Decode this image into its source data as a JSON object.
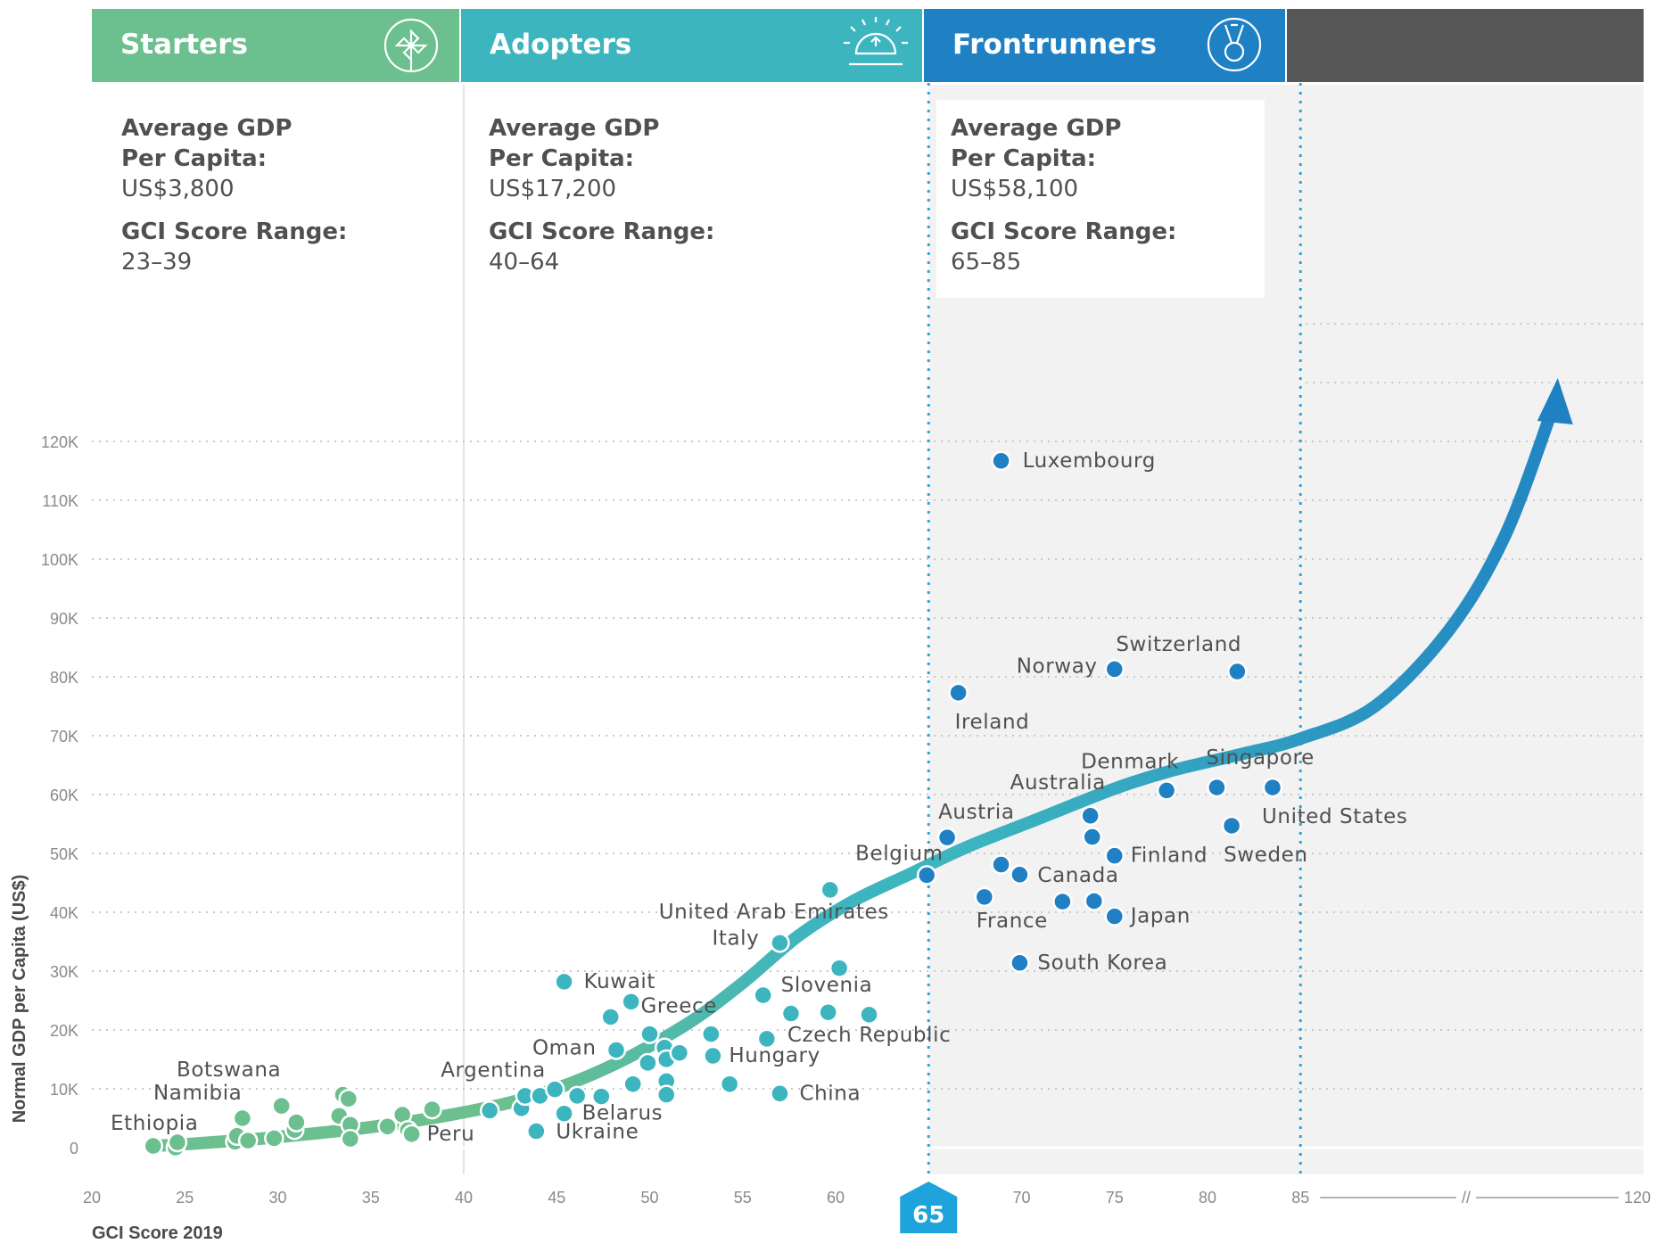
{
  "chart_data": {
    "type": "scatter",
    "xlabel": "GCI Score 2019",
    "ylabel": "Normal GDP per Capita (US$)",
    "x_ticks": [
      "20",
      "25",
      "30",
      "35",
      "40",
      "45",
      "50",
      "55",
      "60",
      "65",
      "70",
      "75",
      "80",
      "85",
      "120"
    ],
    "y_ticks": [
      "0",
      "10K",
      "20K",
      "30K",
      "40K",
      "50K",
      "60K",
      "70K",
      "80K",
      "90K",
      "100K",
      "110K",
      "120K"
    ],
    "xlim": [
      20,
      85
    ],
    "ylim": [
      0,
      120000
    ],
    "axis_break": "//",
    "x_highlight_tick": "65",
    "grid": "horizontal dotted",
    "bands": [
      {
        "name": "Starters",
        "x_range": [
          20,
          40
        ],
        "color": "#6cbf8e",
        "avg_gdp_label": "Average GDP",
        "avg_gdp_label2": "Per Capita:",
        "avg_gdp_value": "US$3,800",
        "range_label": "GCI Score Range:",
        "range_value": "23–39"
      },
      {
        "name": "Adopters",
        "x_range": [
          40,
          65
        ],
        "color": "#3db5bf",
        "avg_gdp_label": "Average GDP",
        "avg_gdp_label2": "Per Capita:",
        "avg_gdp_value": "US$17,200",
        "range_label": "GCI Score Range:",
        "range_value": "40–64"
      },
      {
        "name": "Frontrunners",
        "x_range": [
          65,
          85
        ],
        "color": "#1f80c4",
        "avg_gdp_label": "Average GDP",
        "avg_gdp_label2": "Per Capita:",
        "avg_gdp_value": "US$58,100",
        "range_label": "GCI Score Range:",
        "range_value": "65–85"
      }
    ],
    "extra_band_color": "#585758",
    "trend_colors": {
      "start": "#6cbf8e",
      "mid": "#3db5bf",
      "end": "#1f80c4"
    },
    "points": [
      {
        "x": 23.3,
        "y": 300,
        "group": "starter",
        "label": "Ethiopia"
      },
      {
        "x": 24.5,
        "y": 0,
        "group": "starter"
      },
      {
        "x": 24.6,
        "y": 900,
        "group": "starter"
      },
      {
        "x": 27.7,
        "y": 1000,
        "group": "starter"
      },
      {
        "x": 27.8,
        "y": 2000,
        "group": "starter"
      },
      {
        "x": 28.1,
        "y": 5000,
        "group": "starter",
        "label": "Namibia"
      },
      {
        "x": 28.4,
        "y": 1200,
        "group": "starter"
      },
      {
        "x": 29.8,
        "y": 1600,
        "group": "starter"
      },
      {
        "x": 30.2,
        "y": 7100,
        "group": "starter",
        "label": "Botswana"
      },
      {
        "x": 30.9,
        "y": 3000,
        "group": "starter"
      },
      {
        "x": 31.0,
        "y": 4300,
        "group": "starter"
      },
      {
        "x": 33.3,
        "y": 5400,
        "group": "starter"
      },
      {
        "x": 33.5,
        "y": 9000,
        "group": "starter"
      },
      {
        "x": 33.8,
        "y": 8300,
        "group": "starter"
      },
      {
        "x": 33.9,
        "y": 3900,
        "group": "starter"
      },
      {
        "x": 33.9,
        "y": 1500,
        "group": "starter"
      },
      {
        "x": 35.9,
        "y": 3600,
        "group": "starter"
      },
      {
        "x": 36.7,
        "y": 5600,
        "group": "starter"
      },
      {
        "x": 37.0,
        "y": 3000,
        "group": "starter"
      },
      {
        "x": 37.2,
        "y": 2300,
        "group": "starter",
        "label": "Peru"
      },
      {
        "x": 38.3,
        "y": 6500,
        "group": "starter"
      },
      {
        "x": 41.4,
        "y": 6300,
        "group": "adopter",
        "label": "Argentina"
      },
      {
        "x": 43.1,
        "y": 6700,
        "group": "adopter"
      },
      {
        "x": 43.3,
        "y": 8800,
        "group": "adopter"
      },
      {
        "x": 43.9,
        "y": 2800,
        "group": "adopter",
        "label": "Ukraine"
      },
      {
        "x": 44.1,
        "y": 8800,
        "group": "adopter"
      },
      {
        "x": 44.9,
        "y": 9900,
        "group": "adopter"
      },
      {
        "x": 45.4,
        "y": 28200,
        "group": "adopter",
        "label": "Kuwait"
      },
      {
        "x": 45.4,
        "y": 5800,
        "group": "adopter",
        "label": "Belarus"
      },
      {
        "x": 46.1,
        "y": 8800,
        "group": "adopter"
      },
      {
        "x": 47.4,
        "y": 8700,
        "group": "adopter"
      },
      {
        "x": 47.9,
        "y": 22200,
        "group": "adopter"
      },
      {
        "x": 48.2,
        "y": 16600,
        "group": "adopter",
        "label": "Oman"
      },
      {
        "x": 49.0,
        "y": 24800,
        "group": "adopter"
      },
      {
        "x": 49.1,
        "y": 10800,
        "group": "adopter"
      },
      {
        "x": 49.9,
        "y": 14400,
        "group": "adopter"
      },
      {
        "x": 50.0,
        "y": 19300,
        "group": "adopter",
        "label": "Greece"
      },
      {
        "x": 50.8,
        "y": 17000,
        "group": "adopter"
      },
      {
        "x": 50.9,
        "y": 15000,
        "group": "adopter"
      },
      {
        "x": 50.9,
        "y": 11300,
        "group": "adopter"
      },
      {
        "x": 50.9,
        "y": 9000,
        "group": "adopter"
      },
      {
        "x": 51.6,
        "y": 16100,
        "group": "adopter"
      },
      {
        "x": 53.3,
        "y": 19300,
        "group": "adopter"
      },
      {
        "x": 53.4,
        "y": 15600,
        "group": "adopter",
        "label": "Hungary"
      },
      {
        "x": 54.3,
        "y": 10800,
        "group": "adopter"
      },
      {
        "x": 56.1,
        "y": 25900,
        "group": "adopter",
        "label": "Slovenia"
      },
      {
        "x": 56.3,
        "y": 18500,
        "group": "adopter",
        "label": "Czech Republic"
      },
      {
        "x": 57.0,
        "y": 9200,
        "group": "adopter",
        "label": "China"
      },
      {
        "x": 57.0,
        "y": 34800,
        "group": "adopter",
        "label": "Italy"
      },
      {
        "x": 57.6,
        "y": 22800,
        "group": "adopter"
      },
      {
        "x": 59.6,
        "y": 23000,
        "group": "adopter"
      },
      {
        "x": 59.7,
        "y": 43800,
        "group": "adopter",
        "label": "United Arab Emirates"
      },
      {
        "x": 60.2,
        "y": 30500,
        "group": "adopter"
      },
      {
        "x": 61.8,
        "y": 22600,
        "group": "adopter"
      },
      {
        "x": 64.9,
        "y": 46300,
        "group": "frontrunner",
        "label": "Belgium"
      },
      {
        "x": 66.0,
        "y": 52700,
        "group": "frontrunner",
        "label": "Austria"
      },
      {
        "x": 66.6,
        "y": 77300,
        "group": "frontrunner",
        "label": "Ireland"
      },
      {
        "x": 68.0,
        "y": 42600,
        "group": "frontrunner",
        "label": "France"
      },
      {
        "x": 68.9,
        "y": 116700,
        "group": "frontrunner",
        "label": "Luxembourg"
      },
      {
        "x": 68.9,
        "y": 48100,
        "group": "frontrunner"
      },
      {
        "x": 69.9,
        "y": 46400,
        "group": "frontrunner",
        "label": "Canada"
      },
      {
        "x": 69.9,
        "y": 31400,
        "group": "frontrunner",
        "label": "South Korea"
      },
      {
        "x": 72.2,
        "y": 41800,
        "group": "frontrunner"
      },
      {
        "x": 73.7,
        "y": 56400,
        "group": "frontrunner",
        "label": "Australia"
      },
      {
        "x": 73.8,
        "y": 52800,
        "group": "frontrunner"
      },
      {
        "x": 73.9,
        "y": 41900,
        "group": "frontrunner"
      },
      {
        "x": 75.0,
        "y": 81300,
        "group": "frontrunner",
        "label": "Norway"
      },
      {
        "x": 75.0,
        "y": 49600,
        "group": "frontrunner",
        "label": "Finland"
      },
      {
        "x": 75.0,
        "y": 39300,
        "group": "frontrunner",
        "label": "Japan"
      },
      {
        "x": 77.8,
        "y": 60700,
        "group": "frontrunner",
        "label": "Denmark"
      },
      {
        "x": 80.5,
        "y": 61200,
        "group": "frontrunner",
        "label": "Singapore"
      },
      {
        "x": 81.3,
        "y": 54700,
        "group": "frontrunner",
        "label": "Sweden"
      },
      {
        "x": 81.6,
        "y": 80900,
        "group": "frontrunner",
        "label": "Switzerland"
      },
      {
        "x": 83.5,
        "y": 61200,
        "group": "frontrunner",
        "label": "United States"
      }
    ]
  }
}
